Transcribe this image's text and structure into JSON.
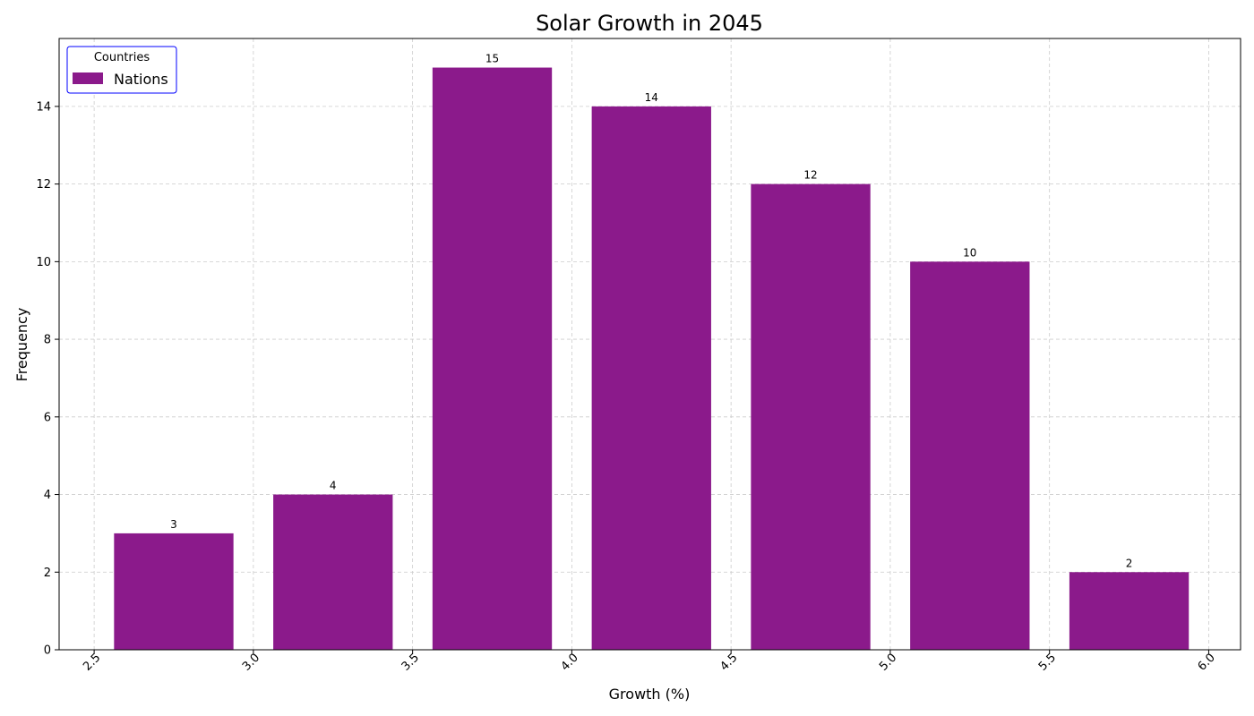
{
  "chart_data": {
    "type": "bar",
    "title": "Solar Growth in 2045",
    "xlabel": "Growth (%)",
    "ylabel": "Frequency",
    "bin_edges": [
      2.5,
      3.0,
      3.5,
      4.0,
      4.5,
      5.0,
      5.5,
      6.0
    ],
    "series": [
      {
        "name": "Nations",
        "values": [
          3,
          4,
          15,
          14,
          12,
          10,
          2
        ]
      }
    ],
    "data_labels": [
      "3",
      "4",
      "15",
      "14",
      "12",
      "10",
      "2"
    ],
    "xlim": [
      2.39,
      6.1
    ],
    "ylim": [
      0,
      15.75
    ],
    "xticks": [
      2.5,
      3.0,
      3.5,
      4.0,
      4.5,
      5.0,
      5.5,
      6.0
    ],
    "xtick_labels": [
      "2.5",
      "3.0",
      "3.5",
      "4.0",
      "4.5",
      "5.0",
      "5.5",
      "6.0"
    ],
    "yticks": [
      0,
      2,
      4,
      6,
      8,
      10,
      12,
      14
    ],
    "ytick_labels": [
      "0",
      "2",
      "4",
      "6",
      "8",
      "10",
      "12",
      "14"
    ],
    "bar_width_fraction": 0.75,
    "grid": true,
    "legend": {
      "title": "Countries",
      "placement": "top-left",
      "border_color": "#0000ff"
    },
    "colors": {
      "bar": "#8b1a8b",
      "grid": "#cccccc"
    }
  }
}
